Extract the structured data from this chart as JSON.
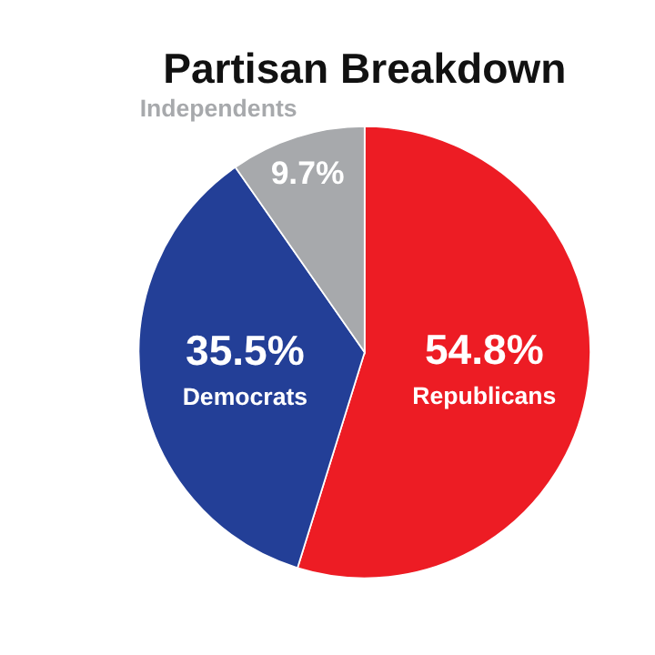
{
  "chart_data": {
    "type": "pie",
    "title": "Partisan Breakdown",
    "categories": [
      "Republicans",
      "Democrats",
      "Independents"
    ],
    "values": [
      54.8,
      35.5,
      9.7
    ],
    "colors": [
      "#ed1c24",
      "#233f97",
      "#a7a9ac"
    ],
    "value_labels": [
      "54.8%",
      "35.5%",
      "9.7%"
    ]
  }
}
